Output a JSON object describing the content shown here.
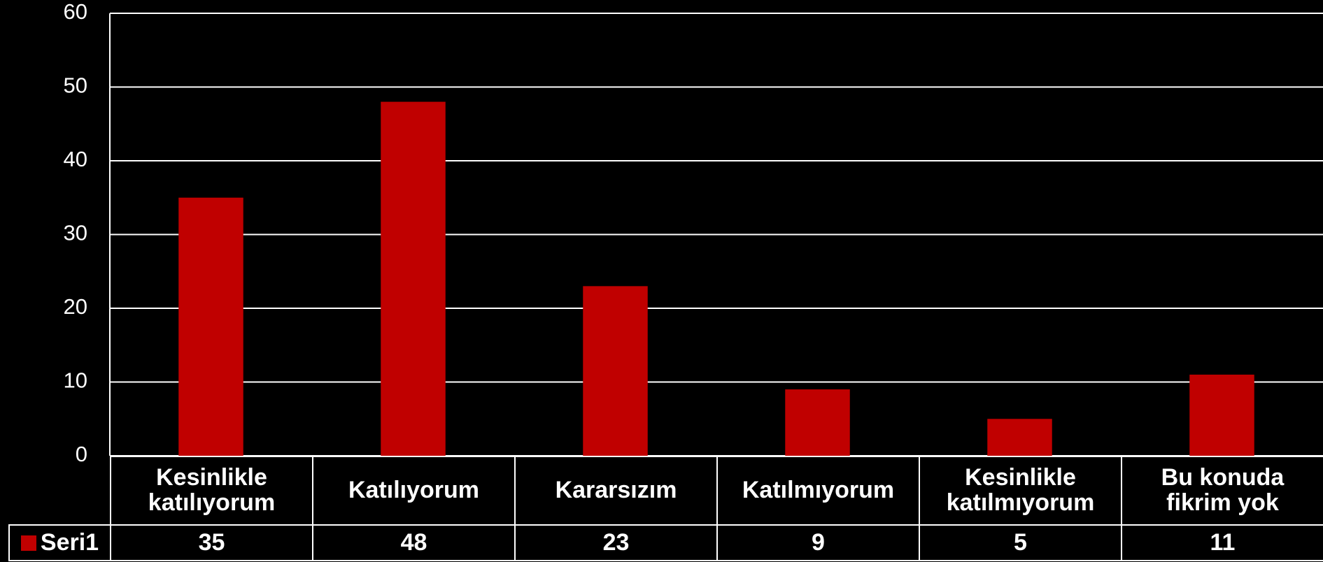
{
  "chart_data": {
    "type": "bar",
    "categories": [
      "Kesinlikle\nkatılıyorum",
      "Katılıyorum",
      "Kararsızım",
      "Katılmıyorum",
      "Kesinlikle\nkatılmıyorum",
      "Bu konuda\nfikrim yok"
    ],
    "series": [
      {
        "name": "Seri1",
        "color": "#c00000",
        "values": [
          35,
          48,
          23,
          9,
          5,
          11
        ]
      }
    ],
    "ylim": [
      0,
      60
    ],
    "yticks": [
      0,
      10,
      20,
      30,
      40,
      50,
      60
    ],
    "grid": true,
    "data_table": true
  }
}
